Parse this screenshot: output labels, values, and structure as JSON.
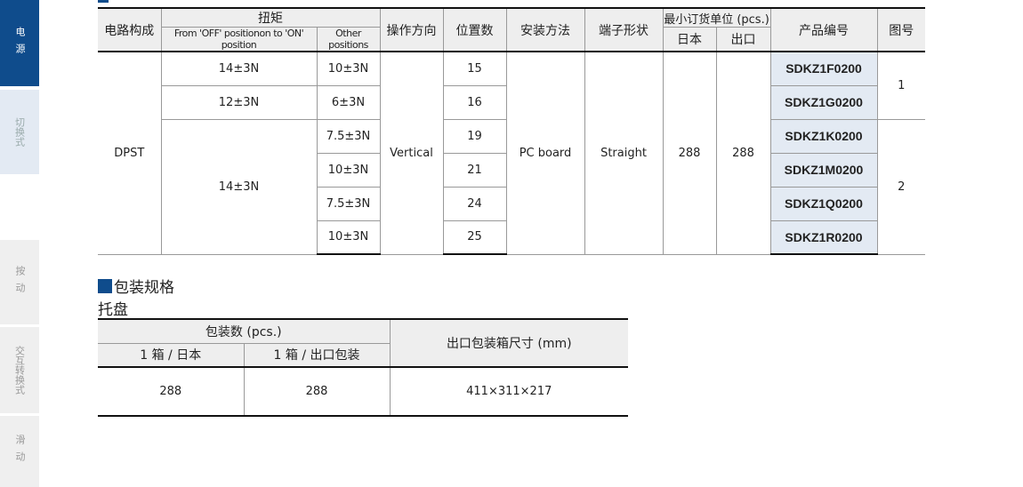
{
  "sidebar": {
    "items": [
      {
        "label": "电源",
        "active": true
      },
      {
        "label": "切换式"
      },
      {
        "label": "按动"
      },
      {
        "label": "交互转换式"
      },
      {
        "label": "滑动"
      }
    ]
  },
  "colors": {
    "accent": "#0f4c8c",
    "code_bg": "#e3eaf3",
    "header_bg": "#eeeeee"
  },
  "spec_table": {
    "headers": {
      "circuit": "电路构成",
      "torque": "扭矩",
      "torque_off_on": "From 'OFF' positionon  to 'ON' position",
      "torque_other": "Other positions",
      "direction": "操作方向",
      "positions": "位置数",
      "mounting": "安装方法",
      "terminal": "端子形状",
      "moq": "最小订货单位 (pcs.)",
      "moq_japan": "日本",
      "moq_export": "出口",
      "part_no": "产品编号",
      "figure": "图号"
    },
    "circuit": "DPST",
    "direction": "Vertical",
    "mounting": "PC board",
    "terminal": "Straight",
    "moq_japan": "288",
    "moq_export": "288",
    "torque_off_on": [
      "14±3N",
      "12±3N",
      "14±3N"
    ],
    "rows": [
      {
        "other": "10±3N",
        "positions": "15",
        "part_no": "SDKZ1F0200"
      },
      {
        "other": "6±3N",
        "positions": "16",
        "part_no": "SDKZ1G0200"
      },
      {
        "other": "7.5±3N",
        "positions": "19",
        "part_no": "SDKZ1K0200"
      },
      {
        "other": "10±3N",
        "positions": "21",
        "part_no": "SDKZ1M0200"
      },
      {
        "other": "7.5±3N",
        "positions": "24",
        "part_no": "SDKZ1Q0200"
      },
      {
        "other": "10±3N",
        "positions": "25",
        "part_no": "SDKZ1R0200"
      }
    ],
    "figures": [
      "1",
      "2"
    ]
  },
  "packaging": {
    "title": "包装规格",
    "subtitle": "托盘",
    "headers": {
      "qty": "包装数 (pcs.)",
      "box_japan": "1 箱 / 日本",
      "box_export": "1 箱 / 出口包装",
      "box_size": "出口包装箱尺寸 (mm)"
    },
    "values": {
      "box_japan": "288",
      "box_export": "288",
      "box_size": "411×311×217"
    }
  }
}
